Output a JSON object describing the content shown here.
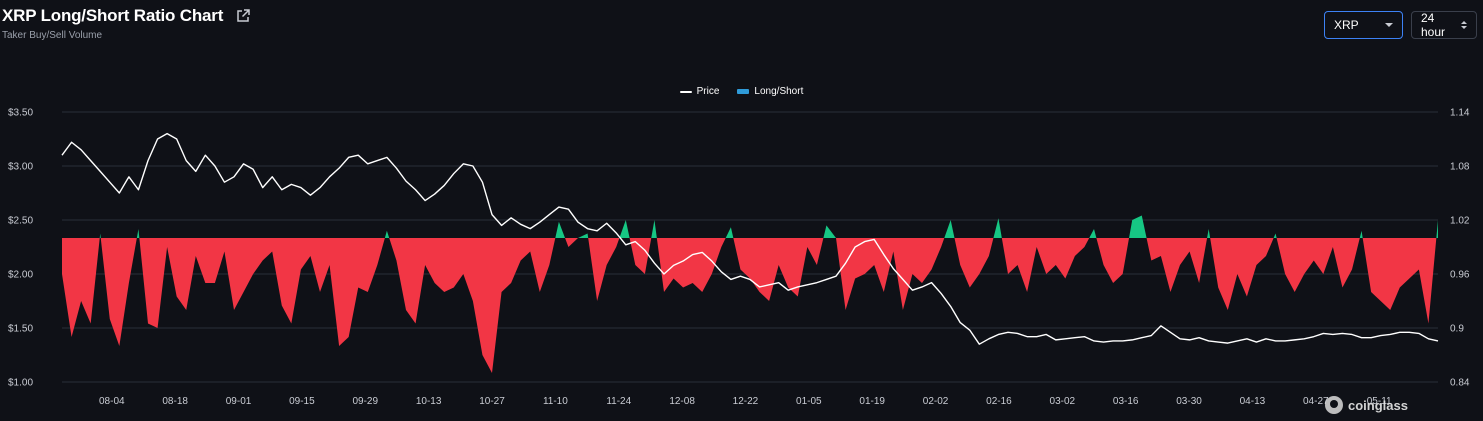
{
  "header": {
    "title": "XRP Long/Short Ratio Chart",
    "subtitle": "Taker Buy/Sell Volume"
  },
  "controls": {
    "asset": "XRP",
    "range": "24 hour"
  },
  "legend": {
    "price": "Price",
    "ratio": "Long/Short"
  },
  "watermark": "coinglass",
  "colors": {
    "background": "#0f1117",
    "grid": "#2a2e38",
    "price_line": "#ffffff",
    "long": "#16c784",
    "short": "#f23645",
    "legend_ratio": "#2f9bd9",
    "select_border_active": "#3d82f5"
  },
  "chart_data": {
    "type": "line+area",
    "grid": true,
    "legend_position": "top-center",
    "x_ticks": [
      "08-04",
      "08-18",
      "09-01",
      "09-15",
      "09-29",
      "10-13",
      "10-27",
      "11-10",
      "11-24",
      "12-08",
      "12-22",
      "01-05",
      "01-19",
      "02-02",
      "02-16",
      "03-02",
      "03-16",
      "03-30",
      "04-13",
      "04-27",
      "05-11"
    ],
    "y_left": {
      "label": "Price",
      "ticks": [
        "$3.50",
        "$3.00",
        "$2.50",
        "$2.00",
        "$1.50",
        "$1.00"
      ],
      "range": [
        1.0,
        3.5
      ]
    },
    "y_right": {
      "label": "Long/Short",
      "ticks": [
        "1.14",
        "1.08",
        "1.02",
        "0.96",
        "0.9",
        "0.84"
      ],
      "range": [
        0.84,
        1.14
      ],
      "baseline": 1.0
    },
    "start_date": "2024-07-24",
    "end_date": "2025-05-24",
    "series": [
      {
        "name": "Price",
        "axis": "left",
        "values": [
          3.1,
          3.22,
          3.15,
          3.05,
          2.95,
          2.85,
          2.75,
          2.9,
          2.78,
          3.05,
          3.25,
          3.3,
          3.25,
          3.05,
          2.95,
          3.1,
          3.0,
          2.85,
          2.9,
          3.02,
          2.97,
          2.8,
          2.9,
          2.78,
          2.83,
          2.8,
          2.73,
          2.8,
          2.9,
          2.98,
          3.08,
          3.1,
          3.02,
          3.05,
          3.08,
          2.98,
          2.86,
          2.78,
          2.68,
          2.74,
          2.82,
          2.93,
          3.02,
          3.0,
          2.85,
          2.55,
          2.45,
          2.52,
          2.46,
          2.42,
          2.48,
          2.55,
          2.62,
          2.6,
          2.48,
          2.42,
          2.4,
          2.47,
          2.38,
          2.27,
          2.3,
          2.22,
          2.1,
          2.0,
          2.08,
          2.12,
          2.18,
          2.2,
          2.12,
          2.02,
          1.95,
          1.98,
          1.95,
          1.88,
          1.9,
          1.92,
          1.85,
          1.88,
          1.9,
          1.92,
          1.95,
          1.98,
          2.1,
          2.25,
          2.3,
          2.32,
          2.18,
          2.05,
          1.95,
          1.85,
          1.88,
          1.92,
          1.82,
          1.7,
          1.55,
          1.48,
          1.35,
          1.4,
          1.44,
          1.46,
          1.45,
          1.42,
          1.42,
          1.44,
          1.39,
          1.4,
          1.41,
          1.42,
          1.38,
          1.37,
          1.38,
          1.38,
          1.39,
          1.41,
          1.43,
          1.52,
          1.46,
          1.4,
          1.39,
          1.41,
          1.38,
          1.37,
          1.36,
          1.38,
          1.4,
          1.37,
          1.4,
          1.38,
          1.38,
          1.39,
          1.4,
          1.42,
          1.45,
          1.44,
          1.45,
          1.44,
          1.41,
          1.41,
          1.43,
          1.44,
          1.46,
          1.46,
          1.45,
          1.4,
          1.38
        ]
      },
      {
        "name": "Long/Short",
        "axis": "right",
        "values": [
          0.96,
          0.89,
          0.93,
          0.905,
          1.005,
          0.91,
          0.88,
          0.95,
          1.01,
          0.905,
          0.9,
          0.99,
          0.935,
          0.92,
          0.98,
          0.95,
          0.95,
          0.985,
          0.92,
          0.94,
          0.96,
          0.975,
          0.985,
          0.925,
          0.905,
          0.965,
          0.98,
          0.94,
          0.97,
          0.88,
          0.89,
          0.945,
          0.94,
          0.97,
          1.008,
          0.975,
          0.92,
          0.905,
          0.97,
          0.95,
          0.94,
          0.945,
          0.96,
          0.93,
          0.87,
          0.85,
          0.94,
          0.95,
          0.975,
          0.985,
          0.94,
          0.97,
          1.018,
          0.99,
          1.0,
          1.005,
          0.93,
          0.97,
          0.99,
          1.02,
          0.97,
          0.96,
          1.02,
          0.94,
          0.955,
          0.945,
          0.95,
          0.94,
          0.96,
          0.99,
          1.012,
          0.965,
          0.955,
          0.94,
          0.93,
          0.97,
          0.945,
          0.935,
          0.99,
          0.97,
          1.014,
          1.0,
          0.92,
          0.955,
          0.96,
          0.97,
          0.94,
          0.985,
          0.92,
          0.96,
          0.95,
          0.965,
          0.99,
          1.02,
          0.97,
          0.945,
          0.96,
          0.98,
          1.022,
          0.96,
          0.97,
          0.94,
          0.99,
          0.96,
          0.97,
          0.955,
          0.98,
          0.99,
          1.01,
          0.97,
          0.95,
          0.96,
          1.02,
          1.025,
          0.975,
          0.98,
          0.94,
          0.97,
          0.985,
          0.95,
          1.01,
          0.945,
          0.92,
          0.96,
          0.935,
          0.97,
          0.98,
          1.005,
          0.96,
          0.94,
          0.96,
          0.975,
          0.96,
          0.99,
          0.945,
          0.965,
          1.008,
          0.94,
          0.93,
          0.92,
          0.945,
          0.955,
          0.965,
          0.905,
          1.02
        ]
      }
    ]
  }
}
